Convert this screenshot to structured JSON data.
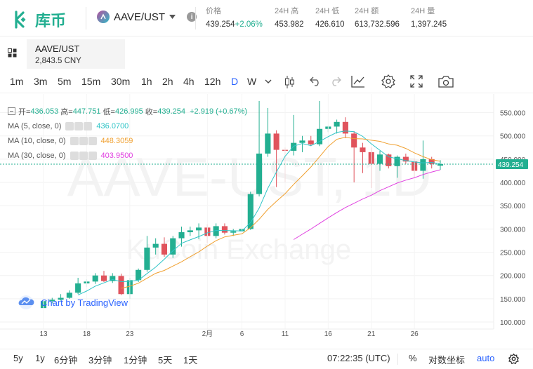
{
  "header": {
    "logo_text": "库币",
    "pair": "AAVE/UST",
    "stats": [
      {
        "label": "价格",
        "value": "439.254",
        "change": "+2.06%"
      },
      {
        "label": "24H 高",
        "value": "453.982"
      },
      {
        "label": "24H 低",
        "value": "426.610"
      },
      {
        "label": "24H 额",
        "value": "613,732.596"
      },
      {
        "label": "24H 量",
        "value": "1,397.245"
      }
    ]
  },
  "tab": {
    "pair": "AAVE/UST",
    "cny": "2,843.5 CNY"
  },
  "toolbar": {
    "intervals": [
      "1m",
      "3m",
      "5m",
      "15m",
      "30m",
      "1h",
      "2h",
      "4h",
      "12h",
      "D",
      "W"
    ],
    "active": "D"
  },
  "legend": {
    "ohlc": {
      "open_label": "开=",
      "open": "436.053",
      "high_label": "高=",
      "high": "447.751",
      "low_label": "低=",
      "low": "426.995",
      "close_label": "收=",
      "close": "439.254",
      "change": "+2.919 (+0.67%)"
    },
    "ma": [
      {
        "label": "MA (5, close, 0)",
        "value": "436.0700",
        "color": "#2ec4c6"
      },
      {
        "label": "MA (10, close, 0)",
        "value": "448.3059",
        "color": "#f0a030"
      },
      {
        "label": "MA (30, close, 0)",
        "value": "403.9500",
        "color": "#e040e0"
      }
    ]
  },
  "watermark": {
    "main": "AAVE-UST, 1D",
    "sub": "KuCoin Exchange"
  },
  "tv_badge": "Chart by TradingView",
  "chart_data": {
    "type": "candlestick",
    "price_axis": [
      "550.000",
      "500.000",
      "450.000",
      "400.000",
      "350.000",
      "300.000",
      "250.000",
      "200.000",
      "150.000",
      "100.000"
    ],
    "ylim": [
      85,
      590
    ],
    "x_ticks": [
      "13",
      "18",
      "23",
      "2月",
      "6",
      "11",
      "16",
      "21",
      "26"
    ],
    "last_price_label": "439.254",
    "candles": [
      {
        "o": 130,
        "h": 150,
        "l": 128,
        "c": 145
      },
      {
        "o": 145,
        "h": 152,
        "l": 140,
        "c": 148
      },
      {
        "o": 148,
        "h": 160,
        "l": 146,
        "c": 152
      },
      {
        "o": 152,
        "h": 168,
        "l": 150,
        "c": 163
      },
      {
        "o": 163,
        "h": 195,
        "l": 160,
        "c": 183
      },
      {
        "o": 183,
        "h": 192,
        "l": 175,
        "c": 187
      },
      {
        "o": 187,
        "h": 205,
        "l": 182,
        "c": 200
      },
      {
        "o": 200,
        "h": 210,
        "l": 186,
        "c": 188
      },
      {
        "o": 188,
        "h": 205,
        "l": 184,
        "c": 199
      },
      {
        "o": 199,
        "h": 204,
        "l": 158,
        "c": 160
      },
      {
        "o": 160,
        "h": 195,
        "l": 150,
        "c": 190
      },
      {
        "o": 190,
        "h": 215,
        "l": 186,
        "c": 212
      },
      {
        "o": 212,
        "h": 285,
        "l": 208,
        "c": 260
      },
      {
        "o": 260,
        "h": 280,
        "l": 245,
        "c": 268
      },
      {
        "o": 268,
        "h": 282,
        "l": 240,
        "c": 245
      },
      {
        "o": 245,
        "h": 285,
        "l": 238,
        "c": 280
      },
      {
        "o": 280,
        "h": 305,
        "l": 262,
        "c": 293
      },
      {
        "o": 293,
        "h": 305,
        "l": 285,
        "c": 297
      },
      {
        "o": 297,
        "h": 312,
        "l": 278,
        "c": 303
      },
      {
        "o": 303,
        "h": 310,
        "l": 270,
        "c": 285
      },
      {
        "o": 285,
        "h": 312,
        "l": 280,
        "c": 306
      },
      {
        "o": 306,
        "h": 312,
        "l": 288,
        "c": 292
      },
      {
        "o": 292,
        "h": 300,
        "l": 285,
        "c": 295
      },
      {
        "o": 295,
        "h": 302,
        "l": 277,
        "c": 300
      },
      {
        "o": 300,
        "h": 380,
        "l": 298,
        "c": 375
      },
      {
        "o": 375,
        "h": 575,
        "l": 370,
        "c": 462
      },
      {
        "o": 462,
        "h": 560,
        "l": 455,
        "c": 505
      },
      {
        "o": 505,
        "h": 512,
        "l": 390,
        "c": 470
      },
      {
        "o": 470,
        "h": 475,
        "l": 400,
        "c": 468
      },
      {
        "o": 468,
        "h": 545,
        "l": 458,
        "c": 485
      },
      {
        "o": 485,
        "h": 500,
        "l": 465,
        "c": 490
      },
      {
        "o": 490,
        "h": 500,
        "l": 478,
        "c": 482
      },
      {
        "o": 482,
        "h": 575,
        "l": 478,
        "c": 515
      },
      {
        "o": 515,
        "h": 522,
        "l": 508,
        "c": 520
      },
      {
        "o": 520,
        "h": 535,
        "l": 505,
        "c": 530
      },
      {
        "o": 530,
        "h": 540,
        "l": 495,
        "c": 505
      },
      {
        "o": 505,
        "h": 510,
        "l": 400,
        "c": 475
      },
      {
        "o": 475,
        "h": 485,
        "l": 420,
        "c": 465
      },
      {
        "o": 465,
        "h": 475,
        "l": 388,
        "c": 440
      },
      {
        "o": 440,
        "h": 468,
        "l": 425,
        "c": 460
      },
      {
        "o": 460,
        "h": 462,
        "l": 430,
        "c": 435
      },
      {
        "o": 435,
        "h": 458,
        "l": 410,
        "c": 455
      },
      {
        "o": 455,
        "h": 462,
        "l": 440,
        "c": 445
      },
      {
        "o": 445,
        "h": 452,
        "l": 410,
        "c": 425
      },
      {
        "o": 425,
        "h": 490,
        "l": 408,
        "c": 450
      },
      {
        "o": 450,
        "h": 455,
        "l": 430,
        "c": 440
      },
      {
        "o": 436.053,
        "h": 447.751,
        "l": 426.995,
        "c": 439.254
      }
    ]
  },
  "bottombar": {
    "ranges": [
      "5y",
      "1y",
      "6分钟",
      "3分钟",
      "1分钟",
      "5天",
      "1天"
    ],
    "time": "07:22:35 (UTC)",
    "percent": "%",
    "log": "对数坐标",
    "auto": "auto"
  }
}
